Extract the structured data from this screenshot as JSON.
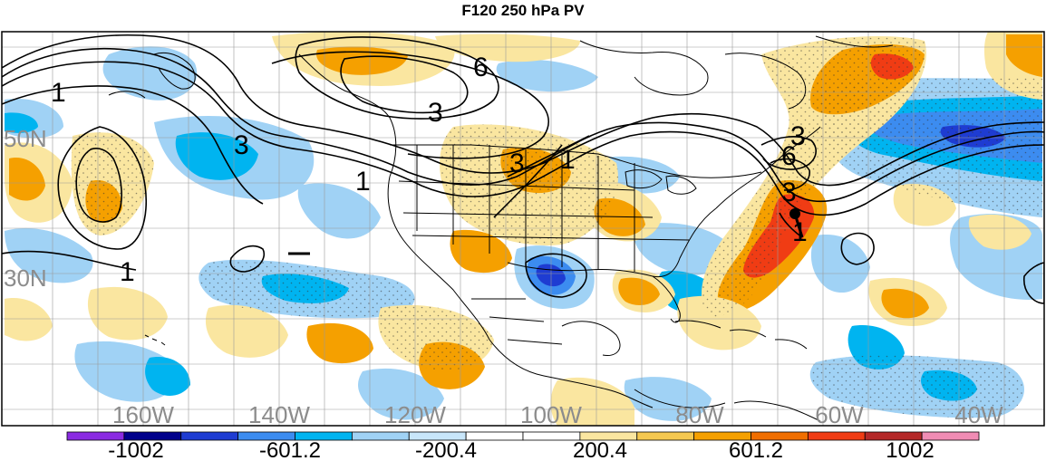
{
  "title": "F120 250 hPa PV",
  "latitude_labels": [
    "50N",
    "30N"
  ],
  "longitude_labels": [
    "160W",
    "140W",
    "120W",
    "100W",
    "80W",
    "60W",
    "40W"
  ],
  "contour_labels": [
    "1",
    "3",
    "6",
    "3",
    "3",
    "1",
    "3",
    "1",
    "6",
    "3",
    "1",
    "1"
  ],
  "colorbar": {
    "colors": [
      "#8a2be2",
      "#00008b",
      "#1e3cd2",
      "#3c8cf0",
      "#00b4f0",
      "#a0d2f5",
      "#c8e6fa",
      "#ffffff",
      "#ffffff",
      "#fae6a0",
      "#f5c850",
      "#f5a000",
      "#f06e00",
      "#f03c14",
      "#b42828",
      "#f08cb4"
    ],
    "labels": [
      "-1002",
      "-601.2",
      "-200.4",
      "200.4",
      "601.2",
      "1002"
    ]
  }
}
